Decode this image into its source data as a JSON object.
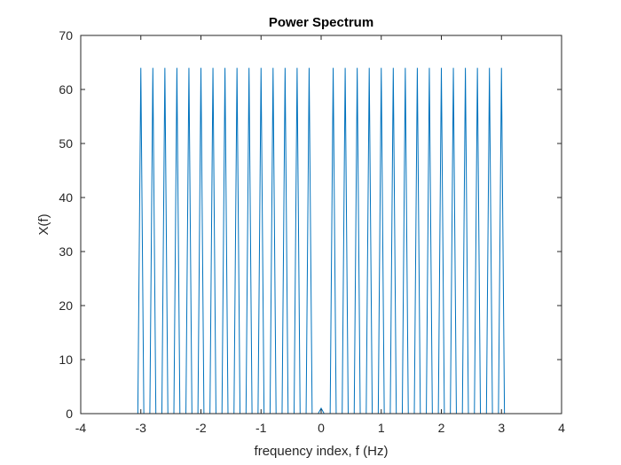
{
  "chart_data": {
    "type": "line",
    "title": "Power Spectrum",
    "xlabel": "frequency index, f (Hz)",
    "ylabel": "X(f)",
    "xlim": [
      -4,
      4
    ],
    "ylim": [
      0,
      70
    ],
    "xticks": [
      -4,
      -3,
      -2,
      -1,
      0,
      1,
      2,
      3,
      4
    ],
    "yticks": [
      0,
      10,
      20,
      30,
      40,
      50,
      60,
      70
    ],
    "grid": false,
    "legend": "none",
    "line_color": "#0072BD",
    "axes_color": "#262626",
    "series": [
      {
        "x": [
          -3.14,
          -3.05,
          -3.0,
          -2.95,
          -2.85,
          -2.8,
          -2.75,
          -2.65,
          -2.6,
          -2.55,
          -2.45,
          -2.4,
          -2.35,
          -2.25,
          -2.2,
          -2.15,
          -2.05,
          -2.0,
          -1.95,
          -1.85,
          -1.8,
          -1.75,
          -1.65,
          -1.6,
          -1.55,
          -1.45,
          -1.4,
          -1.35,
          -1.25,
          -1.2,
          -1.15,
          -1.05,
          -1.0,
          -0.95,
          -0.85,
          -0.8,
          -0.75,
          -0.65,
          -0.6,
          -0.55,
          -0.45,
          -0.4,
          -0.35,
          -0.25,
          -0.2,
          -0.15,
          -0.05,
          0.0,
          0.05,
          0.15,
          0.2,
          0.25,
          0.35,
          0.4,
          0.45,
          0.55,
          0.6,
          0.65,
          0.75,
          0.8,
          0.85,
          0.95,
          1.0,
          1.05,
          1.15,
          1.2,
          1.25,
          1.35,
          1.4,
          1.45,
          1.55,
          1.6,
          1.65,
          1.75,
          1.8,
          1.85,
          1.95,
          2.0,
          2.05,
          2.15,
          2.2,
          2.25,
          2.35,
          2.4,
          2.45,
          2.55,
          2.6,
          2.65,
          2.75,
          2.8,
          2.85,
          2.95,
          3.0,
          3.05,
          3.1
        ],
        "y": [
          0,
          0,
          64,
          0,
          0,
          64,
          0,
          0,
          64,
          0,
          0,
          64,
          0,
          0,
          64,
          0,
          0,
          64,
          0,
          0,
          64,
          0,
          0,
          64,
          0,
          0,
          64,
          0,
          0,
          64,
          0,
          0,
          64,
          0,
          0,
          64,
          0,
          0,
          64,
          0,
          0,
          64,
          0,
          0,
          64,
          0,
          0,
          1,
          0,
          0,
          64,
          0,
          0,
          64,
          0,
          0,
          64,
          0,
          0,
          64,
          0,
          0,
          64,
          0,
          0,
          64,
          0,
          0,
          64,
          0,
          0,
          64,
          0,
          0,
          64,
          0,
          0,
          64,
          0,
          0,
          64,
          0,
          0,
          64,
          0,
          0,
          64,
          0,
          0,
          64,
          0,
          0,
          64,
          0,
          0
        ]
      }
    ]
  }
}
